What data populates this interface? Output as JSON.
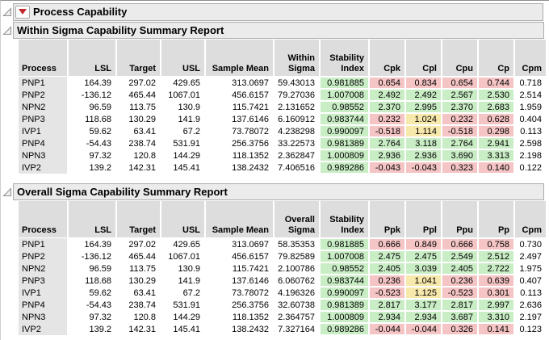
{
  "window": {
    "title": "Process Capability"
  },
  "colors": {
    "green": "#c9edc5",
    "yellow": "#f7e8ac",
    "red": "#f5c4c4"
  },
  "tables": [
    {
      "title": "Within Sigma Capability Summary Report",
      "columns": [
        "Process",
        "LSL",
        "Target",
        "USL",
        "Sample Mean",
        "Within\nSigma",
        "Stability\nIndex",
        "Cpk",
        "Cpl",
        "Cpu",
        "Cp",
        "Cpm"
      ],
      "rows": [
        {
          "cells": [
            "PNP1",
            "164.39",
            "297.02",
            "429.65",
            "313.0697",
            "59.43013",
            "0.981885",
            "0.654",
            "0.834",
            "0.654",
            "0.744",
            "0.718"
          ],
          "hl": [
            "green",
            "red",
            "red",
            "red",
            "red"
          ]
        },
        {
          "cells": [
            "PNP2",
            "-136.12",
            "465.44",
            "1067.01",
            "456.6157",
            "79.27036",
            "1.007008",
            "2.492",
            "2.492",
            "2.567",
            "2.530",
            "2.514"
          ],
          "hl": [
            "green",
            "green",
            "green",
            "green",
            "green"
          ]
        },
        {
          "cells": [
            "NPN2",
            "96.59",
            "113.75",
            "130.9",
            "115.7421",
            "2.131652",
            "0.98552",
            "2.370",
            "2.995",
            "2.370",
            "2.683",
            "1.959"
          ],
          "hl": [
            "green",
            "green",
            "green",
            "green",
            "green"
          ]
        },
        {
          "cells": [
            "PNP3",
            "118.68",
            "130.29",
            "141.9",
            "137.6146",
            "6.160912",
            "0.983744",
            "0.232",
            "1.024",
            "0.232",
            "0.628",
            "0.404"
          ],
          "hl": [
            "green",
            "red",
            "yellow",
            "red",
            "red"
          ]
        },
        {
          "cells": [
            "IVP1",
            "59.62",
            "63.41",
            "67.2",
            "73.78072",
            "4.238298",
            "0.990097",
            "-0.518",
            "1.114",
            "-0.518",
            "0.298",
            "0.113"
          ],
          "hl": [
            "green",
            "red",
            "yellow",
            "red",
            "red"
          ]
        },
        {
          "cells": [
            "PNP4",
            "-54.43",
            "238.74",
            "531.91",
            "256.3756",
            "33.22573",
            "0.981389",
            "2.764",
            "3.118",
            "2.764",
            "2.941",
            "2.598"
          ],
          "hl": [
            "green",
            "green",
            "green",
            "green",
            "green"
          ]
        },
        {
          "cells": [
            "NPN3",
            "97.32",
            "120.8",
            "144.29",
            "118.1352",
            "2.362847",
            "1.000809",
            "2.936",
            "2.936",
            "3.690",
            "3.313",
            "2.198"
          ],
          "hl": [
            "green",
            "green",
            "green",
            "green",
            "green"
          ]
        },
        {
          "cells": [
            "IVP2",
            "139.2",
            "142.31",
            "145.41",
            "138.2432",
            "7.406516",
            "0.989286",
            "-0.043",
            "-0.043",
            "0.323",
            "0.140",
            "0.122"
          ],
          "hl": [
            "green",
            "red",
            "red",
            "red",
            "red"
          ]
        }
      ]
    },
    {
      "title": "Overall Sigma Capability Summary Report",
      "columns": [
        "Process",
        "LSL",
        "Target",
        "USL",
        "Sample Mean",
        "Overall\nSigma",
        "Stability\nIndex",
        "Ppk",
        "Ppl",
        "Ppu",
        "Pp",
        "Cpm"
      ],
      "rows": [
        {
          "cells": [
            "PNP1",
            "164.39",
            "297.02",
            "429.65",
            "313.0697",
            "58.35353",
            "0.981885",
            "0.666",
            "0.849",
            "0.666",
            "0.758",
            "0.730"
          ],
          "hl": [
            "green",
            "red",
            "red",
            "red",
            "red"
          ]
        },
        {
          "cells": [
            "PNP2",
            "-136.12",
            "465.44",
            "1067.01",
            "456.6157",
            "79.82589",
            "1.007008",
            "2.475",
            "2.475",
            "2.549",
            "2.512",
            "2.497"
          ],
          "hl": [
            "green",
            "green",
            "green",
            "green",
            "green"
          ]
        },
        {
          "cells": [
            "NPN2",
            "96.59",
            "113.75",
            "130.9",
            "115.7421",
            "2.100786",
            "0.98552",
            "2.405",
            "3.039",
            "2.405",
            "2.722",
            "1.975"
          ],
          "hl": [
            "green",
            "green",
            "green",
            "green",
            "green"
          ]
        },
        {
          "cells": [
            "PNP3",
            "118.68",
            "130.29",
            "141.9",
            "137.6146",
            "6.060762",
            "0.983744",
            "0.236",
            "1.041",
            "0.236",
            "0.639",
            "0.407"
          ],
          "hl": [
            "green",
            "red",
            "yellow",
            "red",
            "red"
          ]
        },
        {
          "cells": [
            "IVP1",
            "59.62",
            "63.41",
            "67.2",
            "73.78072",
            "4.196326",
            "0.990097",
            "-0.523",
            "1.125",
            "-0.523",
            "0.301",
            "0.113"
          ],
          "hl": [
            "green",
            "red",
            "yellow",
            "red",
            "red"
          ]
        },
        {
          "cells": [
            "PNP4",
            "-54.43",
            "238.74",
            "531.91",
            "256.3756",
            "32.60738",
            "0.981389",
            "2.817",
            "3.177",
            "2.817",
            "2.997",
            "2.636"
          ],
          "hl": [
            "green",
            "green",
            "green",
            "green",
            "green"
          ]
        },
        {
          "cells": [
            "NPN3",
            "97.32",
            "120.8",
            "144.29",
            "118.1352",
            "2.364757",
            "1.000809",
            "2.934",
            "2.934",
            "3.687",
            "3.310",
            "2.197"
          ],
          "hl": [
            "green",
            "green",
            "green",
            "green",
            "green"
          ]
        },
        {
          "cells": [
            "IVP2",
            "139.2",
            "142.31",
            "145.41",
            "138.2432",
            "7.327164",
            "0.989286",
            "-0.044",
            "-0.044",
            "0.326",
            "0.141",
            "0.123"
          ],
          "hl": [
            "green",
            "red",
            "red",
            "red",
            "red"
          ]
        }
      ]
    }
  ]
}
